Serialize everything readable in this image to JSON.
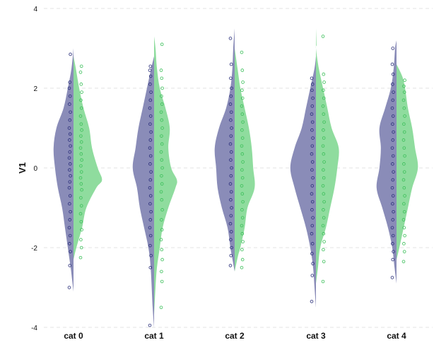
{
  "chart_data": {
    "type": "split-violin-strip",
    "title": "",
    "xlabel": "",
    "ylabel": "V1",
    "categories": [
      "cat 0",
      "cat 1",
      "cat 2",
      "cat 3",
      "cat 4"
    ],
    "ylim": [
      -4,
      4
    ],
    "yticks": [
      -4,
      -2,
      0,
      2,
      4
    ],
    "grid": true,
    "legend": "none",
    "colors": {
      "left": "#8a8cb8",
      "right": "#8fdc9e",
      "left_points": "#2a2f7a",
      "right_points": "#3cbf5a",
      "grid": "#e3e3e3"
    },
    "violins": [
      {
        "category": "cat 0",
        "left": [
          [
            -3.1,
            0.0
          ],
          [
            -2.8,
            0.05
          ],
          [
            -2.5,
            0.1
          ],
          [
            -2.0,
            0.2
          ],
          [
            -1.5,
            0.3
          ],
          [
            -1.0,
            0.4
          ],
          [
            -0.5,
            0.55
          ],
          [
            0.0,
            0.65
          ],
          [
            0.5,
            0.7
          ],
          [
            1.0,
            0.6
          ],
          [
            1.5,
            0.35
          ],
          [
            2.0,
            0.2
          ],
          [
            2.5,
            0.07
          ],
          [
            3.0,
            0.0
          ]
        ],
        "right": [
          [
            -2.3,
            0.0
          ],
          [
            -2.0,
            0.1
          ],
          [
            -1.5,
            0.3
          ],
          [
            -1.0,
            0.45
          ],
          [
            -0.5,
            0.8
          ],
          [
            -0.3,
            1.0
          ],
          [
            0.0,
            0.85
          ],
          [
            0.5,
            0.65
          ],
          [
            1.0,
            0.55
          ],
          [
            1.5,
            0.35
          ],
          [
            2.0,
            0.2
          ],
          [
            2.5,
            0.08
          ],
          [
            2.8,
            0.0
          ]
        ],
        "left_points": [
          -3.0,
          -2.45,
          -2.1,
          -1.9,
          -1.7,
          -1.5,
          -1.3,
          -1.1,
          -0.9,
          -0.7,
          -0.5,
          -0.35,
          -0.2,
          -0.05,
          0.1,
          0.25,
          0.4,
          0.55,
          0.7,
          0.85,
          1.0,
          1.2,
          1.4,
          1.6,
          1.8,
          2.0,
          2.15,
          2.85
        ],
        "right_points": [
          -2.25,
          -2.0,
          -1.8,
          -1.55,
          -1.35,
          -1.15,
          -0.95,
          -0.75,
          -0.55,
          -0.4,
          -0.25,
          -0.1,
          0.05,
          0.2,
          0.35,
          0.5,
          0.65,
          0.8,
          0.95,
          1.1,
          1.3,
          1.5,
          1.7,
          1.9,
          2.1,
          2.4,
          2.55
        ]
      },
      {
        "category": "cat 1",
        "left": [
          [
            -4.0,
            0.0
          ],
          [
            -3.5,
            0.05
          ],
          [
            -2.5,
            0.12
          ],
          [
            -2.0,
            0.2
          ],
          [
            -1.5,
            0.35
          ],
          [
            -1.0,
            0.5
          ],
          [
            -0.5,
            0.6
          ],
          [
            0.0,
            0.75
          ],
          [
            0.5,
            0.65
          ],
          [
            1.0,
            0.55
          ],
          [
            1.5,
            0.4
          ],
          [
            2.0,
            0.25
          ],
          [
            2.5,
            0.1
          ],
          [
            2.8,
            0.0
          ]
        ],
        "right": [
          [
            -3.7,
            0.0
          ],
          [
            -3.0,
            0.05
          ],
          [
            -2.5,
            0.1
          ],
          [
            -2.0,
            0.2
          ],
          [
            -1.5,
            0.3
          ],
          [
            -1.0,
            0.5
          ],
          [
            -0.5,
            0.75
          ],
          [
            -0.3,
            0.8
          ],
          [
            0.0,
            0.6
          ],
          [
            0.5,
            0.5
          ],
          [
            1.0,
            0.55
          ],
          [
            1.5,
            0.4
          ],
          [
            2.0,
            0.2
          ],
          [
            2.5,
            0.1
          ],
          [
            3.0,
            0.05
          ],
          [
            3.3,
            0.0
          ]
        ],
        "left_points": [
          -3.95,
          -2.5,
          -2.2,
          -1.95,
          -1.7,
          -1.5,
          -1.3,
          -1.1,
          -0.9,
          -0.7,
          -0.5,
          -0.3,
          -0.1,
          0.1,
          0.3,
          0.5,
          0.7,
          0.9,
          1.1,
          1.3,
          1.5,
          1.7,
          1.9,
          2.1,
          2.3,
          2.45,
          2.55
        ],
        "right_points": [
          -3.5,
          -2.85,
          -2.6,
          -2.3,
          -2.05,
          -1.8,
          -1.55,
          -1.3,
          -1.05,
          -0.8,
          -0.6,
          -0.4,
          -0.2,
          0.0,
          0.2,
          0.4,
          0.6,
          0.8,
          1.0,
          1.2,
          1.4,
          1.6,
          1.8,
          2.0,
          2.25,
          2.45,
          3.1
        ]
      },
      {
        "category": "cat 2",
        "left": [
          [
            -2.6,
            0.0
          ],
          [
            -2.2,
            0.1
          ],
          [
            -2.0,
            0.15
          ],
          [
            -1.5,
            0.25
          ],
          [
            -1.0,
            0.45
          ],
          [
            -0.5,
            0.6
          ],
          [
            0.0,
            0.65
          ],
          [
            0.5,
            0.7
          ],
          [
            1.0,
            0.55
          ],
          [
            1.5,
            0.3
          ],
          [
            2.0,
            0.15
          ],
          [
            2.5,
            0.08
          ],
          [
            3.0,
            0.05
          ],
          [
            3.5,
            0.0
          ]
        ],
        "right": [
          [
            -2.6,
            0.0
          ],
          [
            -2.2,
            0.12
          ],
          [
            -2.0,
            0.2
          ],
          [
            -1.5,
            0.35
          ],
          [
            -1.0,
            0.45
          ],
          [
            -0.5,
            0.7
          ],
          [
            0.0,
            0.65
          ],
          [
            0.5,
            0.6
          ],
          [
            1.0,
            0.5
          ],
          [
            1.5,
            0.35
          ],
          [
            2.0,
            0.2
          ],
          [
            2.5,
            0.1
          ],
          [
            3.0,
            0.0
          ]
        ],
        "left_points": [
          -2.45,
          -2.2,
          -2.0,
          -1.8,
          -1.6,
          -1.4,
          -1.2,
          -1.0,
          -0.8,
          -0.6,
          -0.4,
          -0.2,
          0.0,
          0.2,
          0.4,
          0.6,
          0.8,
          1.0,
          1.2,
          1.4,
          1.6,
          1.8,
          2.0,
          2.25,
          2.6,
          3.25
        ],
        "right_points": [
          -2.5,
          -2.3,
          -2.05,
          -1.85,
          -1.65,
          -1.45,
          -1.25,
          -1.05,
          -0.85,
          -0.65,
          -0.45,
          -0.25,
          -0.05,
          0.15,
          0.35,
          0.55,
          0.75,
          0.95,
          1.15,
          1.35,
          1.55,
          1.75,
          1.95,
          2.15,
          2.45,
          2.9
        ]
      },
      {
        "category": "cat 3",
        "left": [
          [
            -3.5,
            0.0
          ],
          [
            -3.0,
            0.05
          ],
          [
            -2.5,
            0.1
          ],
          [
            -2.0,
            0.2
          ],
          [
            -1.5,
            0.35
          ],
          [
            -1.0,
            0.55
          ],
          [
            -0.5,
            0.75
          ],
          [
            0.0,
            0.9
          ],
          [
            0.5,
            0.75
          ],
          [
            1.0,
            0.5
          ],
          [
            1.5,
            0.35
          ],
          [
            2.0,
            0.2
          ],
          [
            2.5,
            0.05
          ],
          [
            2.8,
            0.0
          ]
        ],
        "right": [
          [
            -2.9,
            0.0
          ],
          [
            -2.5,
            0.07
          ],
          [
            -2.0,
            0.15
          ],
          [
            -1.5,
            0.35
          ],
          [
            -1.0,
            0.5
          ],
          [
            -0.5,
            0.65
          ],
          [
            0.0,
            0.75
          ],
          [
            0.5,
            0.8
          ],
          [
            1.0,
            0.55
          ],
          [
            1.5,
            0.4
          ],
          [
            2.0,
            0.25
          ],
          [
            2.5,
            0.1
          ],
          [
            3.0,
            0.0
          ],
          [
            3.1,
            0.02
          ],
          [
            3.5,
            0.0
          ]
        ],
        "left_points": [
          -3.35,
          -2.7,
          -2.4,
          -2.15,
          -1.9,
          -1.65,
          -1.45,
          -1.25,
          -1.05,
          -0.85,
          -0.65,
          -0.45,
          -0.25,
          -0.05,
          0.15,
          0.35,
          0.55,
          0.75,
          0.95,
          1.15,
          1.35,
          1.55,
          1.75,
          1.95,
          2.1,
          2.25
        ],
        "right_points": [
          -2.85,
          -2.35,
          -2.05,
          -1.85,
          -1.65,
          -1.45,
          -1.25,
          -1.05,
          -0.85,
          -0.65,
          -0.45,
          -0.25,
          -0.05,
          0.15,
          0.35,
          0.55,
          0.75,
          0.95,
          1.15,
          1.35,
          1.55,
          1.75,
          1.95,
          2.15,
          2.35,
          3.3
        ]
      },
      {
        "category": "cat 4",
        "left": [
          [
            -2.9,
            0.0
          ],
          [
            -2.5,
            0.07
          ],
          [
            -2.0,
            0.15
          ],
          [
            -1.5,
            0.3
          ],
          [
            -1.0,
            0.5
          ],
          [
            -0.5,
            0.7
          ],
          [
            0.0,
            0.6
          ],
          [
            0.5,
            0.55
          ],
          [
            1.0,
            0.6
          ],
          [
            1.5,
            0.4
          ],
          [
            2.0,
            0.2
          ],
          [
            2.5,
            0.1
          ],
          [
            3.0,
            0.05
          ],
          [
            3.2,
            0.0
          ]
        ],
        "right": [
          [
            -2.3,
            0.0
          ],
          [
            -2.0,
            0.1
          ],
          [
            -1.5,
            0.25
          ],
          [
            -1.0,
            0.4
          ],
          [
            -0.5,
            0.55
          ],
          [
            0.0,
            0.75
          ],
          [
            0.5,
            0.65
          ],
          [
            1.0,
            0.55
          ],
          [
            1.5,
            0.4
          ],
          [
            2.0,
            0.3
          ],
          [
            2.3,
            0.2
          ],
          [
            2.6,
            0.0
          ]
        ],
        "left_points": [
          -2.75,
          -2.3,
          -2.1,
          -1.9,
          -1.7,
          -1.5,
          -1.3,
          -1.1,
          -0.9,
          -0.7,
          -0.5,
          -0.3,
          -0.1,
          0.1,
          0.3,
          0.5,
          0.7,
          0.9,
          1.1,
          1.3,
          1.5,
          1.7,
          1.9,
          2.1,
          2.35,
          2.6,
          3.0
        ],
        "right_points": [
          -2.35,
          -2.1,
          -1.9,
          -1.7,
          -1.5,
          -1.3,
          -1.1,
          -0.9,
          -0.7,
          -0.5,
          -0.3,
          -0.1,
          0.1,
          0.3,
          0.5,
          0.7,
          0.9,
          1.1,
          1.3,
          1.5,
          1.7,
          1.9,
          2.05,
          2.2
        ]
      }
    ]
  }
}
